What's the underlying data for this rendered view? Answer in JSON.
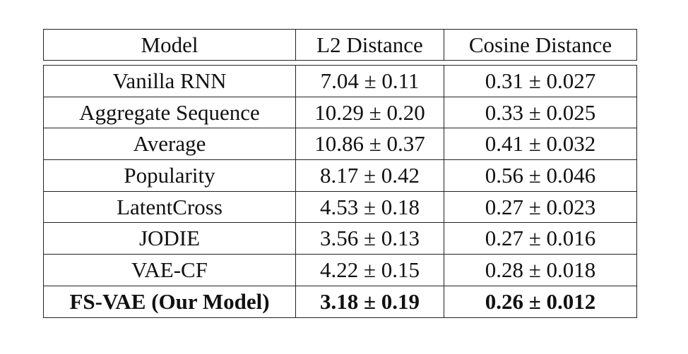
{
  "table": {
    "headers": [
      "Model",
      "L2 Distance",
      "Cosine Distance"
    ],
    "rows": [
      {
        "model": "Vanilla RNN",
        "l2": "7.04 ± 0.11",
        "cosine": "0.31 ± 0.027",
        "bold": false
      },
      {
        "model": "Aggregate Sequence",
        "l2": "10.29 ± 0.20",
        "cosine": "0.33 ± 0.025",
        "bold": false
      },
      {
        "model": "Average",
        "l2": "10.86 ± 0.37",
        "cosine": "0.41 ± 0.032",
        "bold": false
      },
      {
        "model": "Popularity",
        "l2": "8.17 ± 0.42",
        "cosine": "0.56 ± 0.046",
        "bold": false
      },
      {
        "model": "LatentCross",
        "l2": "4.53 ± 0.18",
        "cosine": "0.27 ± 0.023",
        "bold": false
      },
      {
        "model": "JODIE",
        "l2": "3.56 ± 0.13",
        "cosine": "0.27 ± 0.016",
        "bold": false
      },
      {
        "model": "VAE-CF",
        "l2": "4.22 ± 0.15",
        "cosine": "0.28 ± 0.018",
        "bold": false
      },
      {
        "model": "FS-VAE (Our Model)",
        "l2": "3.18 ± 0.19",
        "cosine": "0.26 ± 0.012",
        "bold": true
      }
    ]
  }
}
